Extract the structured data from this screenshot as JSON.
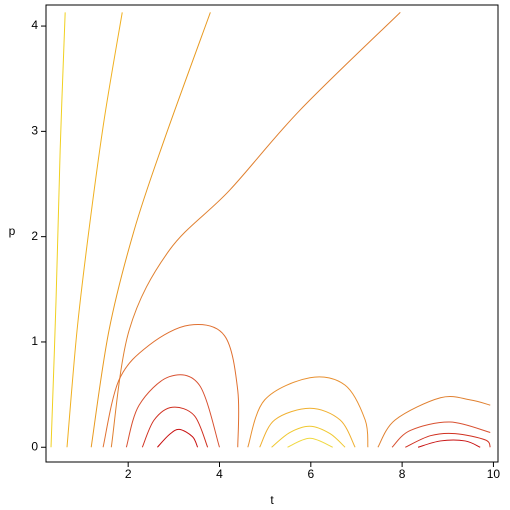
{
  "chart_data": {
    "type": "contour",
    "x_label": "t",
    "y_label": "p",
    "xlim": [
      0.2,
      10.1
    ],
    "ylim": [
      -0.14,
      4.2
    ],
    "xticks": [
      2,
      4,
      6,
      8,
      10
    ],
    "yticks": [
      0,
      1,
      2,
      3,
      4
    ],
    "series": [
      {
        "color": "#f0d020",
        "x": [
          0.31,
          0.42,
          0.51,
          0.62
        ],
        "values": [
          0,
          1.4,
          2.82,
          4.13
        ]
      },
      {
        "color": "#f0b020",
        "x": [
          0.66,
          0.88,
          1.14,
          1.47,
          1.87
        ],
        "values": [
          0,
          1.11,
          2.06,
          3.1,
          4.13
        ]
      },
      {
        "color": "#e89a20",
        "x": [
          1.19,
          1.58,
          2.13,
          2.79,
          3.8
        ],
        "values": [
          0,
          1.11,
          2.06,
          2.92,
          4.13
        ]
      },
      {
        "color": "#e08030",
        "x": [
          1.63,
          2.02,
          2.9,
          4.22,
          5.76,
          7.96
        ],
        "values": [
          0,
          1.11,
          1.87,
          2.44,
          3.2,
          4.13
        ]
      },
      {
        "color": "#e07030",
        "x": [
          1.45,
          1.8,
          2.46,
          3.34,
          4.11,
          4.4,
          4.4
        ],
        "values": [
          0,
          0.64,
          0.97,
          1.16,
          1.06,
          0.54,
          0
        ]
      },
      {
        "color": "#d85030",
        "x": [
          1.96,
          2.24,
          2.9,
          3.56,
          4.0
        ],
        "values": [
          0,
          0.4,
          0.67,
          0.59,
          0
        ]
      },
      {
        "color": "#d03020",
        "x": [
          2.31,
          2.57,
          2.97,
          3.45,
          3.74
        ],
        "values": [
          0,
          0.26,
          0.38,
          0.3,
          0
        ]
      },
      {
        "color": "#c81010",
        "x": [
          2.64,
          2.9,
          3.12,
          3.41,
          3.52
        ],
        "values": [
          0,
          0.12,
          0.17,
          0.1,
          0
        ]
      },
      {
        "color": "#e89030",
        "x": [
          4.62,
          4.99,
          5.98,
          6.75,
          7.19,
          7.25
        ],
        "values": [
          0,
          0.45,
          0.66,
          0.59,
          0.26,
          0
        ]
      },
      {
        "color": "#f0b030",
        "x": [
          4.88,
          5.21,
          5.98,
          6.64,
          6.97
        ],
        "values": [
          0,
          0.26,
          0.37,
          0.26,
          0
        ]
      },
      {
        "color": "#f0c830",
        "x": [
          5.14,
          5.54,
          5.98,
          6.42,
          6.75
        ],
        "values": [
          0,
          0.14,
          0.2,
          0.13,
          0
        ]
      },
      {
        "color": "#f0d840",
        "x": [
          5.49,
          5.98,
          6.48
        ],
        "values": [
          0,
          0.085,
          0
        ]
      },
      {
        "color": "#e08030",
        "x": [
          7.47,
          7.85,
          8.84,
          9.49,
          9.93
        ],
        "values": [
          0,
          0.26,
          0.47,
          0.45,
          0.4
        ]
      },
      {
        "color": "#d85030",
        "x": [
          7.78,
          8.18,
          9.05,
          9.93
        ],
        "values": [
          0,
          0.16,
          0.24,
          0.14
        ]
      },
      {
        "color": "#d03020",
        "x": [
          8.07,
          8.62,
          9.16,
          9.82,
          9.93
        ],
        "values": [
          0,
          0.11,
          0.13,
          0.07,
          0
        ]
      },
      {
        "color": "#c81010",
        "x": [
          8.35,
          8.84,
          9.38,
          9.71
        ],
        "values": [
          0,
          0.06,
          0.06,
          0
        ]
      }
    ]
  }
}
